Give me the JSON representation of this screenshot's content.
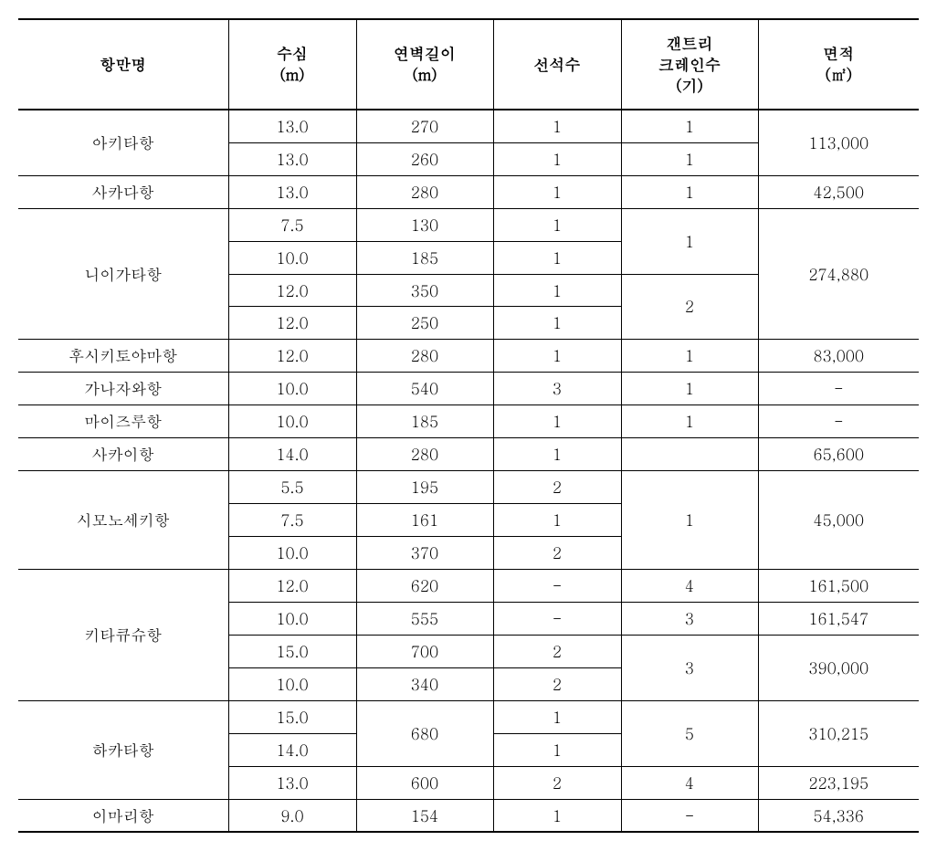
{
  "table": {
    "columns": {
      "port": {
        "label": "항만명"
      },
      "depth": {
        "label": "수심",
        "unit": "(m)"
      },
      "wall": {
        "label": "연벽길이",
        "unit": "(m)"
      },
      "berth": {
        "label": "선석수"
      },
      "crane": {
        "label": "갠트리\n크레인수",
        "unit": "(기)"
      },
      "area": {
        "label": "면적",
        "unit": "(㎡)"
      }
    },
    "ports": {
      "akita": {
        "name": "아키타항",
        "area": "113,000",
        "rows": [
          {
            "depth": "13.0",
            "wall": "270",
            "berth": "1",
            "crane": "1"
          },
          {
            "depth": "13.0",
            "wall": "260",
            "berth": "1",
            "crane": "1"
          }
        ]
      },
      "sakada": {
        "name": "사카다항",
        "area": "42,500",
        "rows": [
          {
            "depth": "13.0",
            "wall": "280",
            "berth": "1",
            "crane": "1"
          }
        ]
      },
      "niigata": {
        "name": "니이가타항",
        "area": "274,880",
        "crane1": "1",
        "crane2": "2",
        "rows": [
          {
            "depth": "7.5",
            "wall": "130",
            "berth": "1"
          },
          {
            "depth": "10.0",
            "wall": "185",
            "berth": "1"
          },
          {
            "depth": "12.0",
            "wall": "350",
            "berth": "1"
          },
          {
            "depth": "12.0",
            "wall": "250",
            "berth": "1"
          }
        ]
      },
      "fushikitoyama": {
        "name": "후시키토야마항",
        "area": "83,000",
        "rows": [
          {
            "depth": "12.0",
            "wall": "280",
            "berth": "1",
            "crane": "1"
          }
        ]
      },
      "kanazawa": {
        "name": "가나자와항",
        "area": "-",
        "rows": [
          {
            "depth": "10.0",
            "wall": "540",
            "berth": "3",
            "crane": "1"
          }
        ]
      },
      "maizuru": {
        "name": "마이즈루항",
        "area": "-",
        "rows": [
          {
            "depth": "10.0",
            "wall": "185",
            "berth": "1",
            "crane": "1"
          }
        ]
      },
      "sakai": {
        "name": "사카이항",
        "area": "65,600",
        "rows": [
          {
            "depth": "14.0",
            "wall": "280",
            "berth": "1",
            "crane": ""
          }
        ]
      },
      "shimonoseki": {
        "name": "시모노세키항",
        "area": "45,000",
        "crane": "1",
        "rows": [
          {
            "depth": "5.5",
            "wall": "195",
            "berth": "2"
          },
          {
            "depth": "7.5",
            "wall": "161",
            "berth": "1"
          },
          {
            "depth": "10.0",
            "wall": "370",
            "berth": "2"
          }
        ]
      },
      "kitakyushu": {
        "name": "키타큐슈항",
        "rows": [
          {
            "depth": "12.0",
            "wall": "620",
            "berth": "-",
            "crane": "4",
            "area": "161,500"
          },
          {
            "depth": "10.0",
            "wall": "555",
            "berth": "-",
            "crane": "3",
            "area": "161,547"
          },
          {
            "depth": "15.0",
            "wall": "700",
            "berth": "2"
          },
          {
            "depth": "10.0",
            "wall": "340",
            "berth": "2"
          }
        ],
        "crane3": "3",
        "area3": "390,000"
      },
      "hakata": {
        "name": "하카타항",
        "wall1": "680",
        "crane1": "5",
        "area1": "310,215",
        "rows": [
          {
            "depth": "15.0",
            "berth": "1"
          },
          {
            "depth": "14.0",
            "berth": "1"
          },
          {
            "depth": "13.0",
            "wall": "600",
            "berth": "2",
            "crane": "4",
            "area": "223,195"
          }
        ]
      },
      "imari": {
        "name": "이마리항",
        "area": "54,336",
        "rows": [
          {
            "depth": "9.0",
            "wall": "154",
            "berth": "1",
            "crane": "-"
          }
        ]
      }
    }
  }
}
